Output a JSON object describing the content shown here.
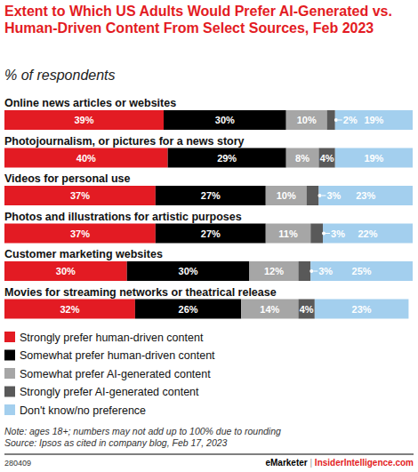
{
  "chart_data": {
    "type": "bar",
    "orientation": "horizontal",
    "stacked": true,
    "data_labels": true,
    "tick_labels": false,
    "title": "Extent to Which US Adults Would Prefer AI-Generated vs. Human-Driven Content From Select Sources, Feb 2023",
    "subtitle": "% of respondents",
    "categories": [
      "Online news articles or websites",
      "Photojournalism, or pictures for a news story",
      "Videos for personal use",
      "Photos and illustrations for artistic purposes",
      "Customer marketing websites",
      "Movies for streaming networks or theatrical release"
    ],
    "xlim": [
      0,
      100
    ],
    "series": [
      {
        "name": "Strongly prefer human-driven content",
        "color": "#e31b23",
        "values": [
          39,
          40,
          37,
          37,
          30,
          32
        ],
        "value_labels": [
          "39%",
          "40%",
          "37%",
          "37%",
          "30%",
          "32%"
        ]
      },
      {
        "name": "Somewhat prefer human-driven content",
        "color": "#000000",
        "values": [
          30,
          29,
          27,
          27,
          30,
          26
        ],
        "value_labels": [
          "30%",
          "29%",
          "27%",
          "27%",
          "30%",
          "26%"
        ]
      },
      {
        "name": "Somewhat prefer AI-generated content",
        "color": "#a6a6a6",
        "values": [
          10,
          8,
          10,
          11,
          12,
          14
        ],
        "value_labels": [
          "10%",
          "8%",
          "10%",
          "11%",
          "12%",
          "14%"
        ]
      },
      {
        "name": "Strongly prefer AI-generated content",
        "color": "#595959",
        "values": [
          2,
          4,
          3,
          3,
          3,
          4
        ],
        "value_labels": [
          "2%",
          "4%",
          "3%",
          "3%",
          "3%",
          "4%"
        ]
      },
      {
        "name": "Don't know/no preference",
        "color": "#a3cfee",
        "values": [
          19,
          19,
          23,
          22,
          25,
          23
        ],
        "value_labels": [
          "19%",
          "19%",
          "23%",
          "22%",
          "25%",
          "23%"
        ]
      }
    ],
    "notes": [
      "Note: ages 18+; numbers may not add up to 100% due to rounding",
      "Source: Ipsos as cited in company blog, Feb 17, 2023"
    ],
    "chart_id": "280409",
    "footer": [
      "eMarketer",
      "|",
      "InsiderIntelligence.com"
    ]
  }
}
